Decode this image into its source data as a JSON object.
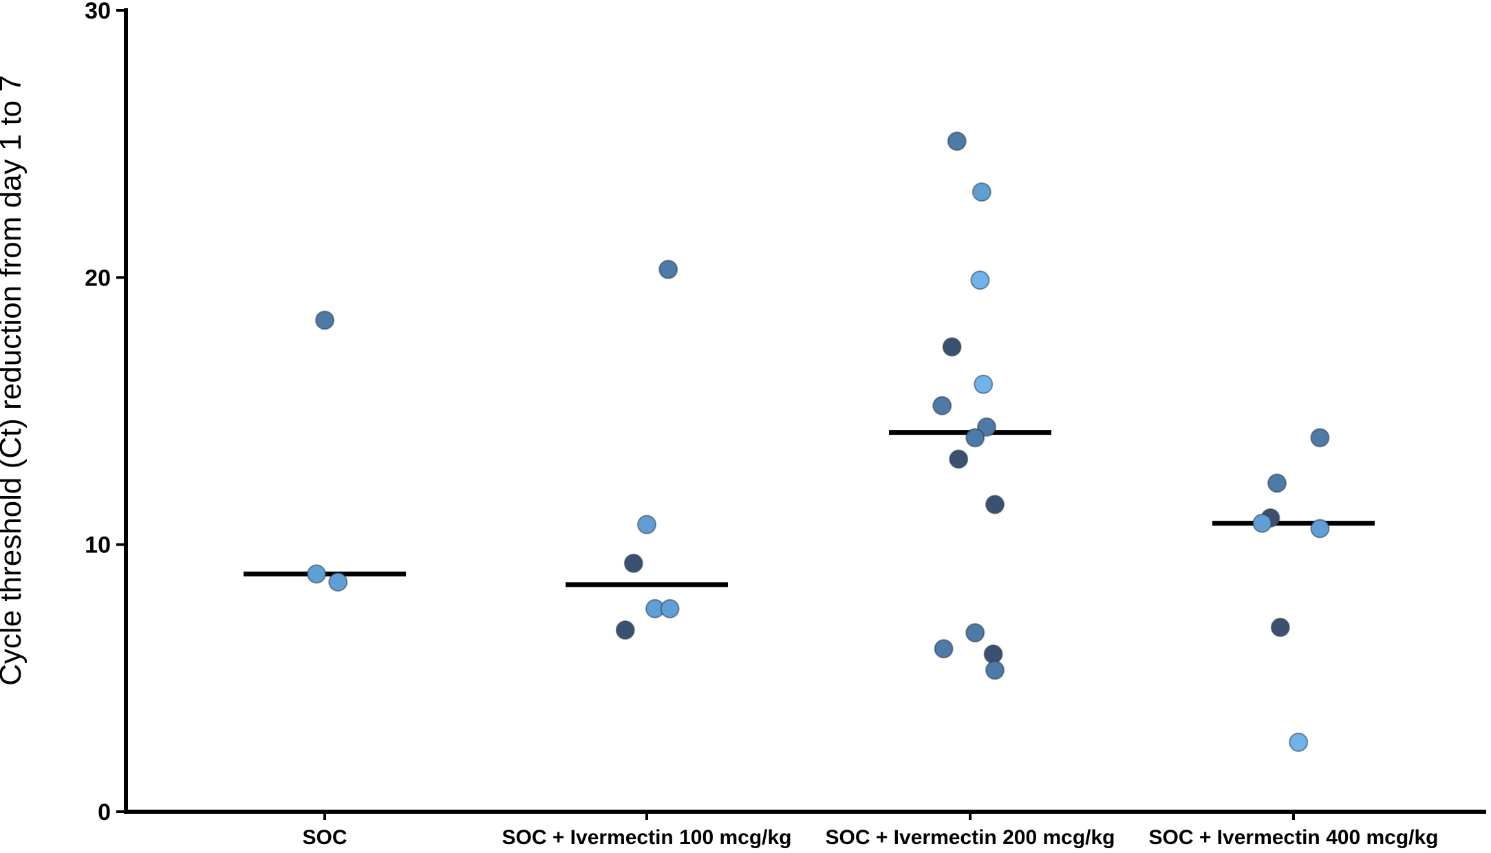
{
  "chart_data": {
    "type": "scatter",
    "title": "",
    "xlabel": "",
    "ylabel": "Cycle threshold (Ct) reduction from day 1 to 7",
    "ylim": [
      0,
      30
    ],
    "y_ticks": [
      0,
      10,
      20,
      30
    ],
    "grid": false,
    "legend": "none",
    "categories": [
      "SOC",
      "SOC + Ivermectin 100 mcg/kg",
      "SOC + Ivermectin 200 mcg/kg",
      "SOC + Ivermectin 400 mcg/kg"
    ],
    "medians": [
      8.9,
      8.5,
      14.2,
      10.8
    ],
    "points": [
      {
        "group": 0,
        "jitter": 0.0,
        "y": 18.4,
        "shade": "mid"
      },
      {
        "group": 0,
        "jitter": -0.05,
        "y": 8.9,
        "shade": "light"
      },
      {
        "group": 0,
        "jitter": 0.08,
        "y": 8.6,
        "shade": "light"
      },
      {
        "group": 1,
        "jitter": 0.13,
        "y": 20.3,
        "shade": "mid"
      },
      {
        "group": 1,
        "jitter": 0.0,
        "y": 10.75,
        "shade": "light"
      },
      {
        "group": 1,
        "jitter": -0.08,
        "y": 9.3,
        "shade": "dark"
      },
      {
        "group": 1,
        "jitter": 0.05,
        "y": 7.6,
        "shade": "light"
      },
      {
        "group": 1,
        "jitter": 0.14,
        "y": 7.6,
        "shade": "light"
      },
      {
        "group": 1,
        "jitter": -0.13,
        "y": 6.8,
        "shade": "dark"
      },
      {
        "group": 2,
        "jitter": -0.08,
        "y": 25.1,
        "shade": "mid"
      },
      {
        "group": 2,
        "jitter": 0.07,
        "y": 23.2,
        "shade": "light"
      },
      {
        "group": 2,
        "jitter": 0.06,
        "y": 19.9,
        "shade": "light2"
      },
      {
        "group": 2,
        "jitter": -0.11,
        "y": 17.4,
        "shade": "dark"
      },
      {
        "group": 2,
        "jitter": 0.08,
        "y": 16.0,
        "shade": "light2"
      },
      {
        "group": 2,
        "jitter": -0.17,
        "y": 15.2,
        "shade": "mid"
      },
      {
        "group": 2,
        "jitter": 0.1,
        "y": 14.4,
        "shade": "mid"
      },
      {
        "group": 2,
        "jitter": 0.03,
        "y": 14.0,
        "shade": "mid"
      },
      {
        "group": 2,
        "jitter": -0.07,
        "y": 13.2,
        "shade": "dark"
      },
      {
        "group": 2,
        "jitter": 0.15,
        "y": 11.5,
        "shade": "dark"
      },
      {
        "group": 2,
        "jitter": 0.03,
        "y": 6.7,
        "shade": "mid"
      },
      {
        "group": 2,
        "jitter": -0.16,
        "y": 6.1,
        "shade": "mid"
      },
      {
        "group": 2,
        "jitter": 0.14,
        "y": 5.9,
        "shade": "dark"
      },
      {
        "group": 2,
        "jitter": 0.15,
        "y": 5.3,
        "shade": "mid"
      },
      {
        "group": 3,
        "jitter": 0.16,
        "y": 14.0,
        "shade": "mid"
      },
      {
        "group": 3,
        "jitter": -0.1,
        "y": 12.3,
        "shade": "mid"
      },
      {
        "group": 3,
        "jitter": -0.14,
        "y": 11.0,
        "shade": "dark"
      },
      {
        "group": 3,
        "jitter": -0.19,
        "y": 10.8,
        "shade": "light"
      },
      {
        "group": 3,
        "jitter": 0.16,
        "y": 10.6,
        "shade": "light"
      },
      {
        "group": 3,
        "jitter": -0.08,
        "y": 6.9,
        "shade": "dark"
      },
      {
        "group": 3,
        "jitter": 0.03,
        "y": 2.6,
        "shade": "light2"
      }
    ],
    "colors": {
      "dark": "#3a5270",
      "mid": "#4d7aa6",
      "light": "#5f9fd6",
      "light2": "#6fb3ea",
      "median_line": "#000000",
      "axis": "#000000"
    }
  }
}
